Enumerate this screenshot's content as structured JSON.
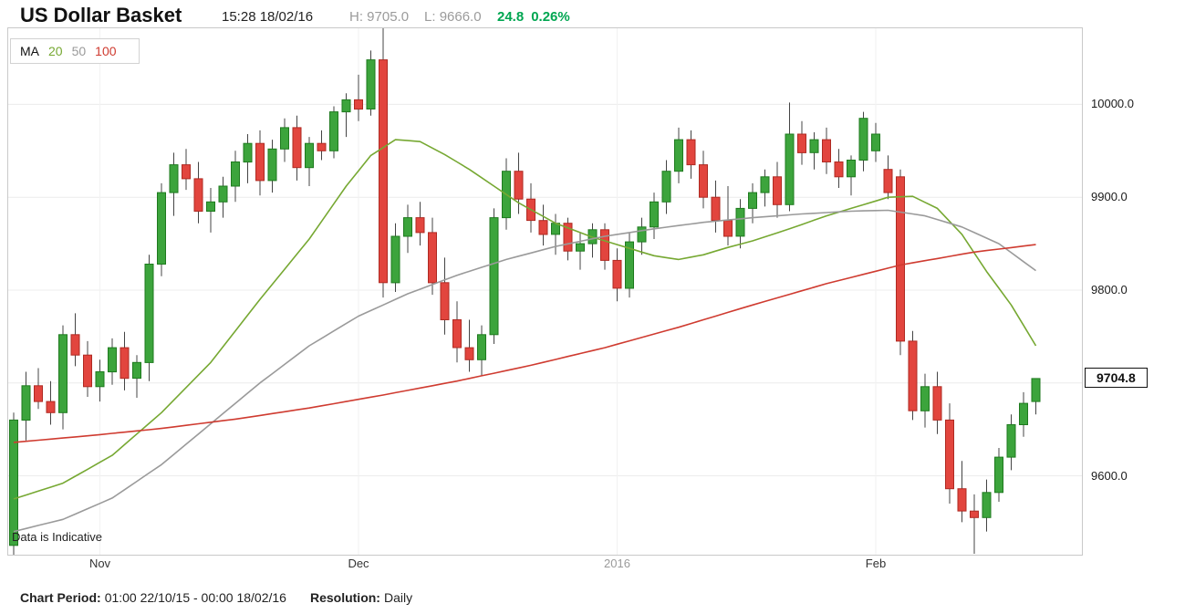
{
  "header": {
    "title": "US Dollar Basket",
    "timestamp": "15:28 18/02/16",
    "high_label": "H:",
    "high_value": "9705.0",
    "low_label": "L:",
    "low_value": "9666.0",
    "change_value": "24.8",
    "change_percent": "0.26%"
  },
  "footer": {
    "period_label": "Chart Period:",
    "period_value": "01:00 22/10/15 - 00:00 18/02/16",
    "resolution_label": "Resolution:",
    "resolution_value": "Daily"
  },
  "chart_data": {
    "type": "candlestick",
    "title": "US Dollar Basket",
    "resolution": "Daily",
    "legend_label": "MA",
    "watermark": "Data is Indicative",
    "last_price": 9704.8,
    "last_price_label": "9704.8",
    "ylim": [
      9515,
      10082
    ],
    "grid_values": [
      10000,
      9900,
      9800,
      9700,
      9600
    ],
    "y_ticks": [
      {
        "value": 10000,
        "label": "10000.0"
      },
      {
        "value": 9900,
        "label": "9900.0"
      },
      {
        "value": 9800,
        "label": "9800.0"
      },
      {
        "value": 9600,
        "label": "9600.0"
      }
    ],
    "x_labels": [
      {
        "label": "Nov",
        "index": 7,
        "color": "#333333"
      },
      {
        "label": "Dec",
        "index": 28,
        "color": "#333333"
      },
      {
        "label": "2016",
        "index": 49,
        "color": "#9a9a9a"
      },
      {
        "label": "Feb",
        "index": 70,
        "color": "#333333"
      }
    ],
    "colors": {
      "up": "#3CA43C",
      "up_border": "#1E7A1E",
      "down": "#E2453E",
      "down_border": "#AF2A22",
      "wick": "#444444",
      "grid": "#ececec",
      "vgrid": "#f2f2f2",
      "change_text": "#00A651"
    },
    "ma": [
      {
        "name": "20",
        "period": 20,
        "color": "#76A832",
        "points": [
          [
            0,
            9575
          ],
          [
            4,
            9592
          ],
          [
            8,
            9622
          ],
          [
            12,
            9668
          ],
          [
            16,
            9722
          ],
          [
            20,
            9790
          ],
          [
            24,
            9855
          ],
          [
            27,
            9912
          ],
          [
            29,
            9945
          ],
          [
            31,
            9962
          ],
          [
            33,
            9960
          ],
          [
            35,
            9946
          ],
          [
            37,
            9930
          ],
          [
            39,
            9912
          ],
          [
            41,
            9894
          ],
          [
            44,
            9872
          ],
          [
            47,
            9857
          ],
          [
            50,
            9845
          ],
          [
            52,
            9837
          ],
          [
            54,
            9833
          ],
          [
            56,
            9838
          ],
          [
            58,
            9846
          ],
          [
            60,
            9853
          ],
          [
            63,
            9866
          ],
          [
            66,
            9880
          ],
          [
            69,
            9892
          ],
          [
            71,
            9900
          ],
          [
            73,
            9901
          ],
          [
            75,
            9888
          ],
          [
            77,
            9860
          ],
          [
            79,
            9820
          ],
          [
            81,
            9784
          ],
          [
            83,
            9740
          ]
        ]
      },
      {
        "name": "50",
        "period": 50,
        "color": "#9A9A9A",
        "points": [
          [
            0,
            9540
          ],
          [
            4,
            9553
          ],
          [
            8,
            9576
          ],
          [
            12,
            9612
          ],
          [
            16,
            9656
          ],
          [
            20,
            9700
          ],
          [
            24,
            9740
          ],
          [
            28,
            9772
          ],
          [
            32,
            9796
          ],
          [
            36,
            9816
          ],
          [
            40,
            9833
          ],
          [
            44,
            9847
          ],
          [
            48,
            9858
          ],
          [
            52,
            9866
          ],
          [
            56,
            9873
          ],
          [
            60,
            9878
          ],
          [
            64,
            9882
          ],
          [
            68,
            9885
          ],
          [
            71,
            9886
          ],
          [
            74,
            9880
          ],
          [
            77,
            9868
          ],
          [
            80,
            9850
          ],
          [
            83,
            9821
          ]
        ]
      },
      {
        "name": "100",
        "period": 100,
        "color": "#CF3B30",
        "points": [
          [
            0,
            9636
          ],
          [
            6,
            9643
          ],
          [
            12,
            9651
          ],
          [
            18,
            9661
          ],
          [
            24,
            9673
          ],
          [
            30,
            9687
          ],
          [
            36,
            9702
          ],
          [
            42,
            9719
          ],
          [
            48,
            9738
          ],
          [
            54,
            9760
          ],
          [
            60,
            9784
          ],
          [
            66,
            9807
          ],
          [
            72,
            9827
          ],
          [
            78,
            9841
          ],
          [
            83,
            9849
          ]
        ]
      }
    ],
    "candles": [
      [
        9525,
        9668,
        9512,
        9660
      ],
      [
        9660,
        9712,
        9638,
        9697
      ],
      [
        9697,
        9716,
        9672,
        9680
      ],
      [
        9680,
        9702,
        9655,
        9668
      ],
      [
        9668,
        9762,
        9650,
        9752
      ],
      [
        9752,
        9775,
        9718,
        9730
      ],
      [
        9730,
        9745,
        9685,
        9696
      ],
      [
        9696,
        9725,
        9680,
        9712
      ],
      [
        9712,
        9748,
        9698,
        9738
      ],
      [
        9738,
        9755,
        9692,
        9705
      ],
      [
        9705,
        9730,
        9684,
        9722
      ],
      [
        9722,
        9838,
        9702,
        9828
      ],
      [
        9828,
        9915,
        9815,
        9905
      ],
      [
        9905,
        9948,
        9880,
        9935
      ],
      [
        9935,
        9952,
        9908,
        9920
      ],
      [
        9920,
        9938,
        9872,
        9885
      ],
      [
        9885,
        9910,
        9862,
        9895
      ],
      [
        9895,
        9922,
        9878,
        9912
      ],
      [
        9912,
        9950,
        9895,
        9938
      ],
      [
        9938,
        9968,
        9915,
        9958
      ],
      [
        9958,
        9972,
        9902,
        9918
      ],
      [
        9918,
        9962,
        9905,
        9952
      ],
      [
        9952,
        9985,
        9938,
        9975
      ],
      [
        9975,
        9988,
        9918,
        9932
      ],
      [
        9932,
        9965,
        9912,
        9958
      ],
      [
        9958,
        9972,
        9940,
        9950
      ],
      [
        9950,
        9998,
        9942,
        9992
      ],
      [
        9992,
        10012,
        9965,
        10005
      ],
      [
        10005,
        10032,
        9982,
        9995
      ],
      [
        9995,
        10058,
        9988,
        10048
      ],
      [
        10048,
        10082,
        9792,
        9808
      ],
      [
        9808,
        9872,
        9798,
        9858
      ],
      [
        9858,
        9892,
        9840,
        9878
      ],
      [
        9878,
        9895,
        9848,
        9862
      ],
      [
        9862,
        9878,
        9795,
        9808
      ],
      [
        9808,
        9835,
        9752,
        9768
      ],
      [
        9768,
        9788,
        9722,
        9738
      ],
      [
        9738,
        9768,
        9712,
        9725
      ],
      [
        9725,
        9762,
        9708,
        9752
      ],
      [
        9752,
        9888,
        9742,
        9878
      ],
      [
        9878,
        9942,
        9865,
        9928
      ],
      [
        9928,
        9948,
        9882,
        9898
      ],
      [
        9898,
        9915,
        9862,
        9875
      ],
      [
        9875,
        9892,
        9848,
        9860
      ],
      [
        9860,
        9882,
        9838,
        9872
      ],
      [
        9872,
        9878,
        9832,
        9842
      ],
      [
        9842,
        9862,
        9822,
        9850
      ],
      [
        9850,
        9872,
        9835,
        9865
      ],
      [
        9865,
        9872,
        9822,
        9832
      ],
      [
        9832,
        9845,
        9788,
        9802
      ],
      [
        9802,
        9862,
        9792,
        9852
      ],
      [
        9852,
        9878,
        9838,
        9868
      ],
      [
        9868,
        9905,
        9855,
        9895
      ],
      [
        9895,
        9940,
        9882,
        9928
      ],
      [
        9928,
        9975,
        9915,
        9962
      ],
      [
        9962,
        9972,
        9920,
        9935
      ],
      [
        9935,
        9950,
        9888,
        9900
      ],
      [
        9900,
        9918,
        9862,
        9875
      ],
      [
        9875,
        9912,
        9848,
        9858
      ],
      [
        9858,
        9898,
        9845,
        9888
      ],
      [
        9888,
        9915,
        9872,
        9905
      ],
      [
        9905,
        9930,
        9890,
        9922
      ],
      [
        9922,
        9938,
        9878,
        9892
      ],
      [
        9892,
        10002,
        9885,
        9968
      ],
      [
        9968,
        9982,
        9935,
        9948
      ],
      [
        9948,
        9970,
        9930,
        9962
      ],
      [
        9962,
        9975,
        9925,
        9938
      ],
      [
        9938,
        9952,
        9910,
        9922
      ],
      [
        9922,
        9945,
        9902,
        9940
      ],
      [
        9940,
        9992,
        9928,
        9985
      ],
      [
        9950,
        9980,
        9938,
        9968
      ],
      [
        9930,
        9945,
        9898,
        9905
      ],
      [
        9922,
        9930,
        9730,
        9745
      ],
      [
        9745,
        9756,
        9660,
        9670
      ],
      [
        9670,
        9710,
        9652,
        9696
      ],
      [
        9696,
        9712,
        9645,
        9660
      ],
      [
        9660,
        9678,
        9570,
        9586
      ],
      [
        9586,
        9616,
        9550,
        9562
      ],
      [
        9562,
        9580,
        9516,
        9555
      ],
      [
        9555,
        9596,
        9540,
        9582
      ],
      [
        9582,
        9630,
        9572,
        9620
      ],
      [
        9620,
        9666,
        9606,
        9655
      ],
      [
        9655,
        9690,
        9642,
        9678
      ],
      [
        9680,
        9705,
        9666,
        9704.8
      ]
    ]
  }
}
